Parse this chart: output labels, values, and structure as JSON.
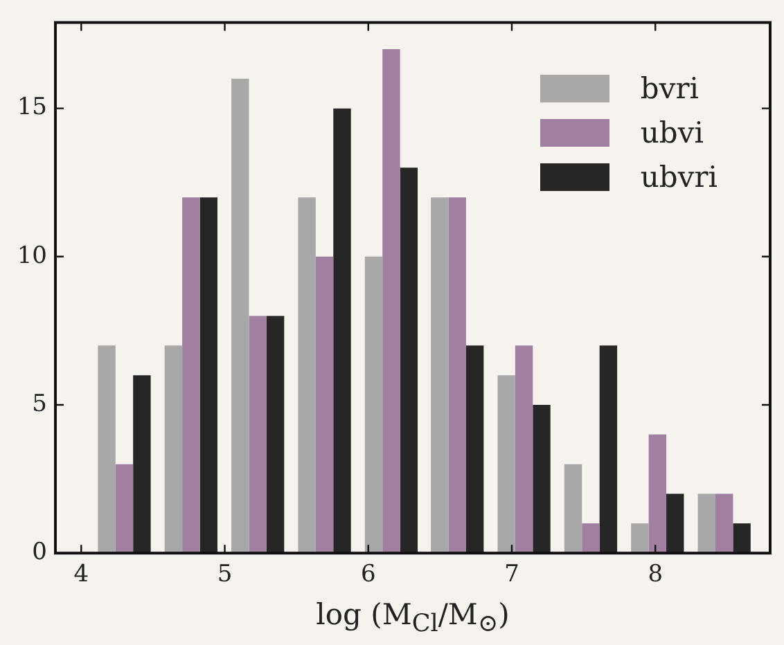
{
  "chart_data": {
    "type": "histogram",
    "xlabel": "log (M$_{Cl}$/M$_{⊙}$)",
    "bins": [
      4.07,
      4.53,
      5.0,
      5.46,
      5.93,
      6.39,
      6.85,
      7.32,
      7.78,
      8.25,
      8.71
    ],
    "series": [
      {
        "name": "bvri",
        "color": "#a8a8a8",
        "values": [
          7,
          7,
          16,
          12,
          10,
          12,
          6,
          3,
          1,
          2
        ]
      },
      {
        "name": "ubvi",
        "color": "#a07fa0",
        "values": [
          3,
          12,
          8,
          10,
          17,
          12,
          7,
          1,
          4,
          2
        ]
      },
      {
        "name": "ubvri",
        "color": "#262626",
        "values": [
          6,
          12,
          8,
          15,
          13,
          7,
          5,
          7,
          2,
          1
        ]
      }
    ],
    "xlim": [
      3.82,
      8.8
    ],
    "xticks": [
      4,
      5,
      6,
      7,
      8
    ],
    "ylim": [
      0,
      17.9
    ],
    "yticks": [
      0,
      5,
      10,
      15
    ],
    "grid": false,
    "legend": "top right"
  }
}
